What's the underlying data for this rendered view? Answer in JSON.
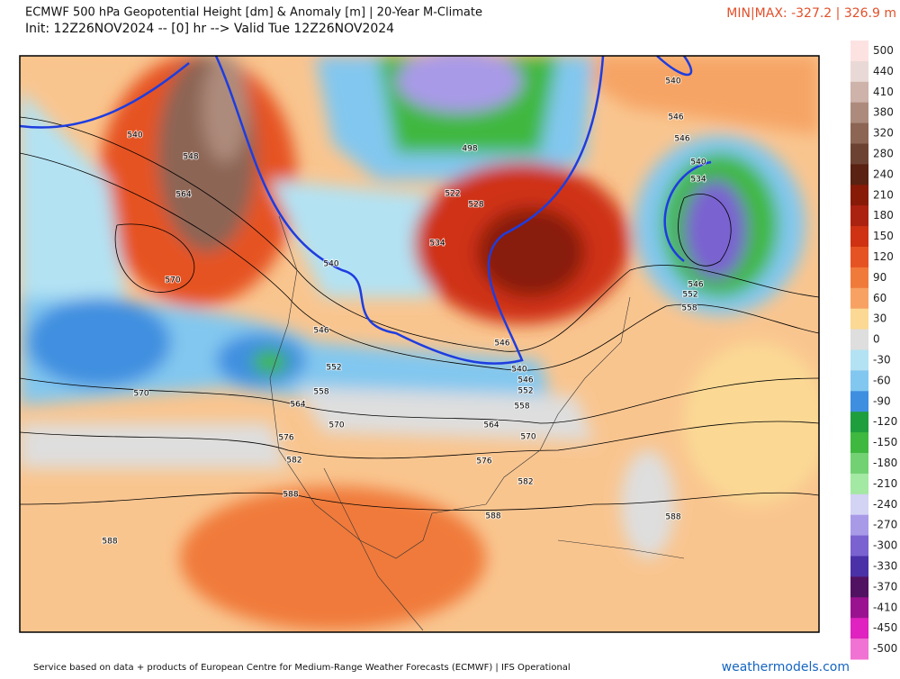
{
  "header": {
    "title": "ECMWF 500 hPa Geopotential Height [dm] & Anomaly [m] | 20-Year M-Climate",
    "subtitle": "Init: 12Z26NOV2024 -- [0] hr --> Valid Tue 12Z26NOV2024",
    "minmax": "MIN|MAX: -327.2 | 326.9 m"
  },
  "colorbar": [
    {
      "label": "500",
      "color": "#fde2e2"
    },
    {
      "label": "440",
      "color": "#e9d9d6"
    },
    {
      "label": "410",
      "color": "#cdb3aa"
    },
    {
      "label": "380",
      "color": "#ad8b7c"
    },
    {
      "label": "320",
      "color": "#8c6555"
    },
    {
      "label": "280",
      "color": "#6c4333"
    },
    {
      "label": "240",
      "color": "#5a2212"
    },
    {
      "label": "210",
      "color": "#881a08"
    },
    {
      "label": "180",
      "color": "#ac2210"
    },
    {
      "label": "150",
      "color": "#cf3212"
    },
    {
      "label": "120",
      "color": "#e65322"
    },
    {
      "label": "90",
      "color": "#f07a3a"
    },
    {
      "label": "60",
      "color": "#f7a263"
    },
    {
      "label": "30",
      "color": "#fbd994"
    },
    {
      "label": "0",
      "color": "#dedede"
    },
    {
      "label": "-30",
      "color": "#b3e2f3"
    },
    {
      "label": "-60",
      "color": "#82c7ef"
    },
    {
      "label": "-90",
      "color": "#3f8fe0"
    },
    {
      "label": "-120",
      "color": "#1f9e3e"
    },
    {
      "label": "-150",
      "color": "#3fb840"
    },
    {
      "label": "-180",
      "color": "#72d172"
    },
    {
      "label": "-210",
      "color": "#a3e8a3"
    },
    {
      "label": "-240",
      "color": "#d3d3f3"
    },
    {
      "label": "-270",
      "color": "#a99ae8"
    },
    {
      "label": "-300",
      "color": "#7a62d0"
    },
    {
      "label": "-330",
      "color": "#4a31a8"
    },
    {
      "label": "-370",
      "color": "#521262"
    },
    {
      "label": "-410",
      "color": "#9b1290"
    },
    {
      "label": "-450",
      "color": "#df22c0"
    },
    {
      "label": "-500",
      "color": "#f072d2"
    }
  ],
  "contour_labels": [
    "540",
    "548",
    "564",
    "570",
    "570",
    "546",
    "552",
    "558",
    "564",
    "570",
    "576",
    "582",
    "588",
    "588",
    "540",
    "534",
    "528",
    "522",
    "498",
    "540",
    "546",
    "546",
    "540",
    "534",
    "546",
    "552",
    "558",
    "546",
    "540",
    "546",
    "552",
    "558",
    "564",
    "570",
    "576",
    "582",
    "588",
    "588"
  ],
  "footer": {
    "credit": "Service based on data + products of European Centre for Medium-Range Weather Forecasts (ECMWF) | IFS Operational",
    "brand": "weathermodels.com"
  }
}
